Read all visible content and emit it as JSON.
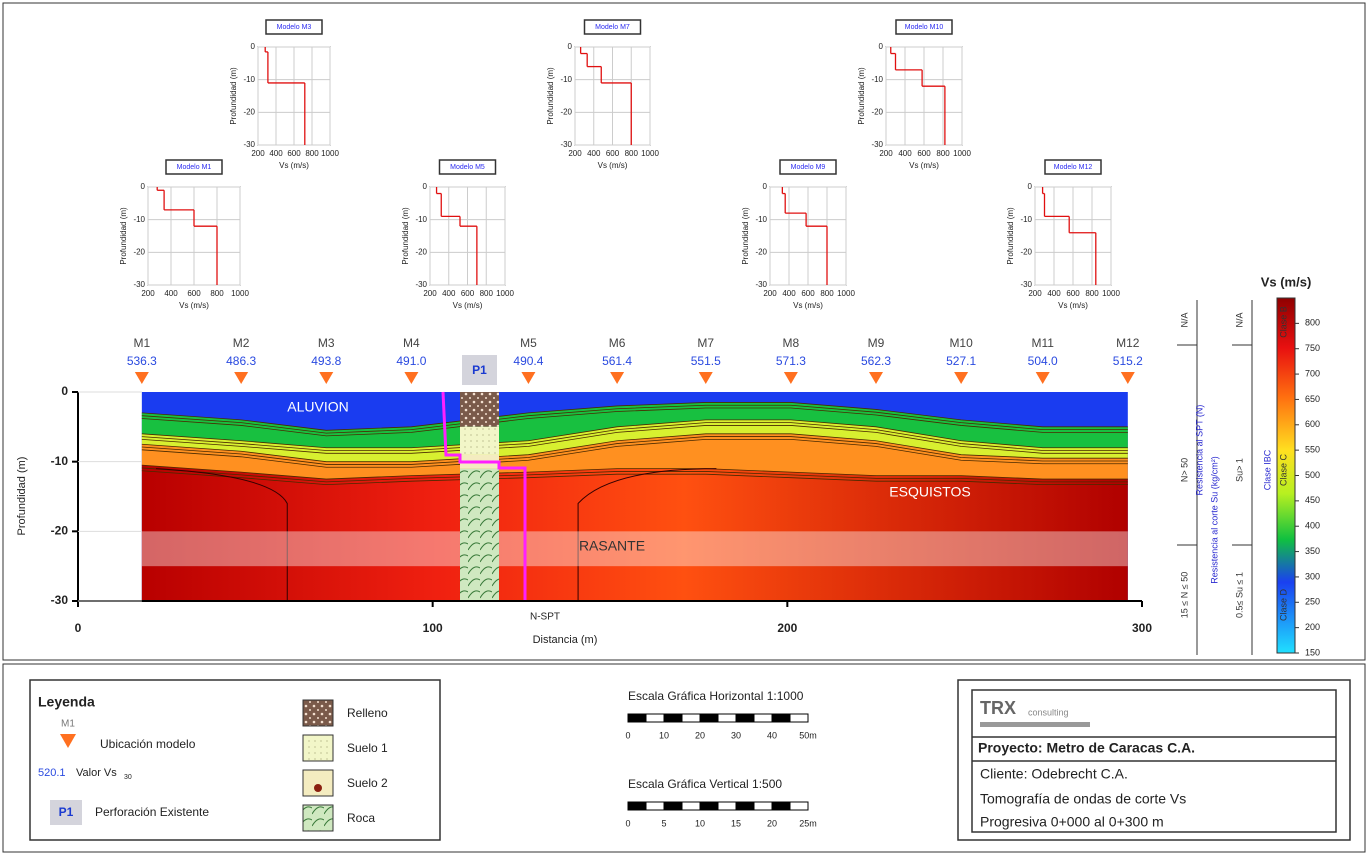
{
  "profiles": {
    "xlabel": "Vs (m/s)",
    "ylabel": "Profundidad (m)",
    "xlim": [
      200,
      1000
    ],
    "xticks": [
      200,
      400,
      600,
      800,
      1000
    ],
    "ylim": [
      -30,
      0
    ],
    "yticks": [
      0,
      -10,
      -20,
      -30
    ],
    "items": [
      {
        "title": "Modelo M3",
        "vs": [
          280,
          310,
          720
        ],
        "depth": [
          -1.5,
          -11,
          -30
        ]
      },
      {
        "title": "Modelo M7",
        "vs": [
          260,
          330,
          480,
          800
        ],
        "depth": [
          -2,
          -6,
          -11,
          -30
        ]
      },
      {
        "title": "Modelo M10",
        "vs": [
          250,
          300,
          580,
          820
        ],
        "depth": [
          -2,
          -7,
          -12,
          -30
        ]
      },
      {
        "title": "Modelo M1",
        "vs": [
          280,
          340,
          600,
          800
        ],
        "depth": [
          -1,
          -7,
          -12,
          -30
        ]
      },
      {
        "title": "Modelo M5",
        "vs": [
          270,
          320,
          520,
          700
        ],
        "depth": [
          -2,
          -9,
          -12,
          -30
        ]
      },
      {
        "title": "Modelo M9",
        "vs": [
          330,
          360,
          580,
          800
        ],
        "depth": [
          -2,
          -8,
          -12,
          -30
        ]
      },
      {
        "title": "Modelo M12",
        "vs": [
          280,
          300,
          560,
          840
        ],
        "depth": [
          -2,
          -9,
          -14,
          -30
        ]
      }
    ]
  },
  "section": {
    "xlabel": "Distancia (m)",
    "ylabel": "Profundidad (m)",
    "xlim": [
      0,
      300
    ],
    "xticks": [
      0,
      100,
      200,
      300
    ],
    "ylim": [
      -30,
      0
    ],
    "yticks": [
      0,
      -10,
      -20,
      -30
    ],
    "models": {
      "names": [
        "M1",
        "M2",
        "M3",
        "M4",
        "M5",
        "M6",
        "M7",
        "M8",
        "M9",
        "M10",
        "M11",
        "M12"
      ],
      "x": [
        18,
        46,
        70,
        94,
        127,
        152,
        177,
        201,
        225,
        249,
        272,
        296
      ],
      "values": [
        536.3,
        486.3,
        493.8,
        491,
        490.4,
        561.4,
        551.5,
        571.3,
        562.3,
        527.1,
        504,
        515.2
      ],
      "value_labels": [
        "536.3",
        "486.3",
        "493.8",
        "491.0",
        "490.4",
        "561.4",
        "551.5",
        "571.3",
        "562.3",
        "527.1",
        "504.0",
        "515.2"
      ]
    },
    "labels": [
      "ALUVION",
      "ESQUISTOS",
      "RASANTE"
    ],
    "borehole": "P1",
    "spt_label": "N-SPT"
  },
  "colorbar": {
    "title": "Vs (m/s)",
    "lim": [
      150,
      850
    ],
    "ticks": [
      150,
      200,
      250,
      300,
      350,
      400,
      450,
      500,
      550,
      600,
      650,
      700,
      750,
      800
    ]
  },
  "classification": {
    "spt": {
      "title": "Resistencia al SPT (N)",
      "classes": [
        "N/A",
        "N> 50",
        "15 ≤ N ≤ 50"
      ]
    },
    "su": {
      "title": "Resistencia al corte Su (kg/cm²)",
      "classes": [
        "N/A",
        "Su> 1",
        "0.5≤ Su ≤ 1"
      ]
    },
    "site": {
      "title": "Clase IBC",
      "classes": [
        "Clase B",
        "Clase C",
        "Clase D"
      ]
    }
  },
  "legend": {
    "title": "Leyenda",
    "model_symbol": "M1",
    "model_label": "Ubicación modelo",
    "vs_example": "520.1",
    "vs_label": "Valor Vs",
    "vs_sub": "30",
    "borehole_symbol": "P1",
    "borehole_label": "Perforación Existente",
    "soils": [
      "Relleno",
      "Suelo 1",
      "Suelo 2",
      "Roca"
    ]
  },
  "scales": [
    {
      "title": "Escala Gráfica Horizontal 1:1000",
      "ticks": [
        "0",
        "10",
        "20",
        "30",
        "40",
        "50m"
      ]
    },
    {
      "title": "Escala Gráfica Vertical 1:500",
      "ticks": [
        "0",
        "5",
        "10",
        "15",
        "20",
        "25m"
      ]
    }
  ],
  "title_block": {
    "logo": "TRX",
    "logo_sub": "consulting",
    "project": "Proyecto: Metro de Caracas C.A.",
    "client": "Cliente: Odebrecht C.A.",
    "description": "Tomografía de ondas de corte Vs",
    "progresiva": "Progresiva 0+000 al 0+300 m"
  }
}
